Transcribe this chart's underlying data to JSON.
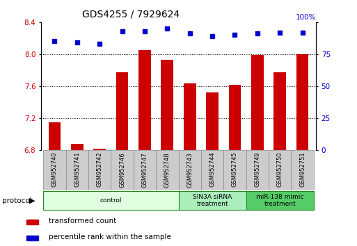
{
  "title": "GDS4255 / 7929624",
  "samples": [
    "GSM952740",
    "GSM952741",
    "GSM952742",
    "GSM952746",
    "GSM952747",
    "GSM952748",
    "GSM952743",
    "GSM952744",
    "GSM952745",
    "GSM952749",
    "GSM952750",
    "GSM952751"
  ],
  "transformed_count": [
    7.15,
    6.88,
    6.82,
    7.77,
    8.05,
    7.93,
    7.63,
    7.52,
    7.62,
    7.99,
    7.77,
    8.0
  ],
  "percentile_rank": [
    85,
    84,
    83,
    93,
    93,
    95,
    91,
    89,
    90,
    91,
    92,
    92
  ],
  "bar_color": "#cc0000",
  "dot_color": "#0000cc",
  "ylim_left": [
    6.8,
    8.4
  ],
  "ylim_right": [
    0,
    100
  ],
  "yticks_left": [
    6.8,
    7.2,
    7.6,
    8.0,
    8.4
  ],
  "yticks_right": [
    0,
    25,
    50,
    75,
    100
  ],
  "grid_values": [
    7.2,
    7.6,
    8.0
  ],
  "groups": [
    {
      "label": "control",
      "start": 0,
      "end": 6,
      "color": "#dfffdf",
      "text_color": "#000000"
    },
    {
      "label": "SIN3A siRNA\ntreatment",
      "start": 6,
      "end": 9,
      "color": "#aaeebb",
      "text_color": "#000000"
    },
    {
      "label": "miR-138 mimic\ntreatment",
      "start": 9,
      "end": 12,
      "color": "#55cc66",
      "text_color": "#000000"
    }
  ],
  "legend_items": [
    {
      "label": "transformed count",
      "color": "#cc0000"
    },
    {
      "label": "percentile rank within the sample",
      "color": "#0000cc"
    }
  ],
  "protocol_label": "protocol",
  "background_color": "#ffffff",
  "tick_label_color_left": "#cc0000",
  "tick_label_color_right": "#0000cc",
  "sample_box_color": "#cccccc",
  "sample_box_edge": "#888888"
}
